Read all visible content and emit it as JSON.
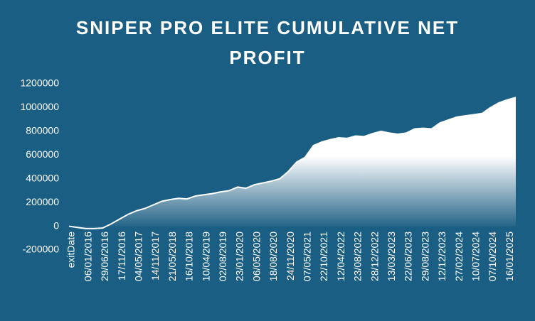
{
  "chart_data": {
    "type": "area",
    "title": "SNIPER PRO ELITE CUMULATIVE NET PROFIT",
    "x_label": "exitDate",
    "categories": [
      null,
      null,
      "06/01/2016",
      null,
      "29/06/2016",
      null,
      "17/11/2016",
      null,
      "04/05/2017",
      null,
      "14/11/2017",
      null,
      "21/05/2018",
      null,
      "16/10/2018",
      null,
      "10/04/2019",
      null,
      "02/08/2019",
      null,
      "23/01/2020",
      null,
      "06/05/2020",
      null,
      "18/08/2020",
      null,
      "24/11/2020",
      null,
      "07/05/2021",
      null,
      "22/10/2021",
      null,
      "12/04/2022",
      null,
      "23/08/2022",
      null,
      "28/12/2022",
      null,
      "13/03/2023",
      null,
      "22/06/2023",
      null,
      "29/08/2023",
      null,
      "12/12/2023",
      null,
      "27/02/2024",
      null,
      "10/07/2024",
      null,
      "07/10/2024",
      null,
      "16/01/2025",
      null
    ],
    "values": [
      0,
      -10000,
      -20000,
      -20000,
      -15000,
      20000,
      60000,
      100000,
      130000,
      150000,
      180000,
      210000,
      225000,
      235000,
      230000,
      255000,
      265000,
      275000,
      290000,
      300000,
      330000,
      320000,
      350000,
      365000,
      380000,
      400000,
      460000,
      540000,
      580000,
      680000,
      710000,
      730000,
      745000,
      740000,
      760000,
      755000,
      780000,
      800000,
      785000,
      775000,
      785000,
      820000,
      825000,
      820000,
      870000,
      895000,
      920000,
      930000,
      940000,
      950000,
      1000000,
      1040000,
      1065000,
      1085000
    ],
    "color": "#ffffff",
    "ylim": [
      -200000,
      1200000
    ],
    "yticks": [
      -200000,
      0,
      200000,
      400000,
      600000,
      800000,
      1000000,
      1200000
    ]
  }
}
